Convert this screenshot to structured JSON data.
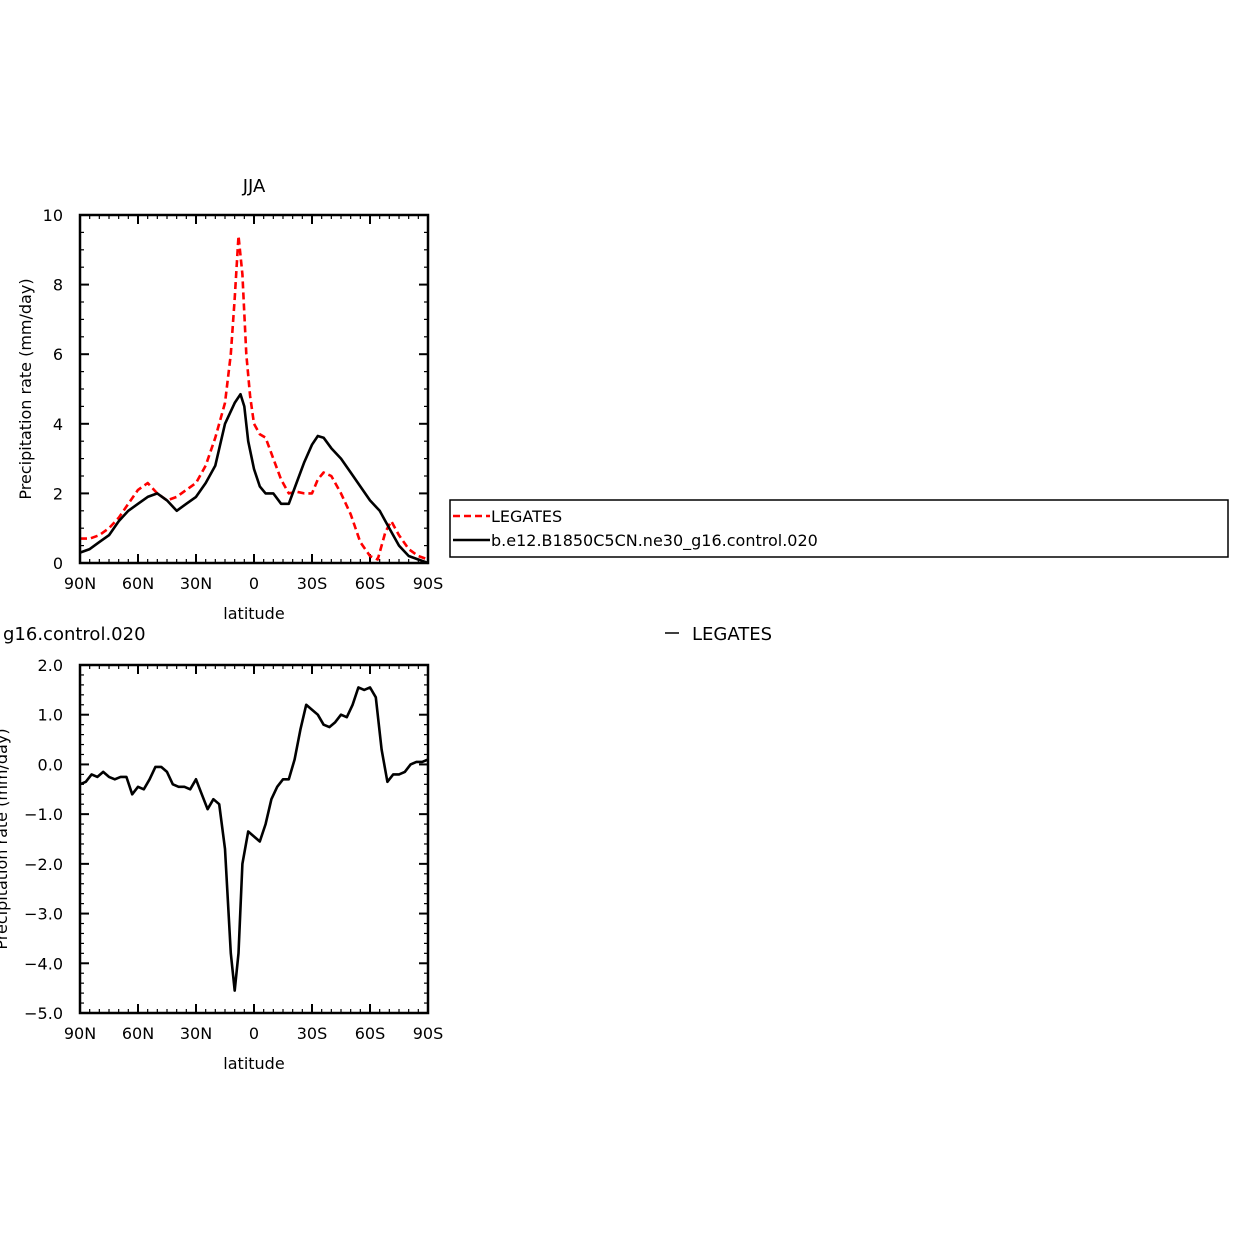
{
  "chart_data": [
    {
      "type": "line",
      "title": "JJA",
      "xlabel": "latitude",
      "ylabel": "Precipitation rate (mm/day)",
      "xlim": [
        -90,
        90
      ],
      "ylim": [
        0,
        10
      ],
      "xticks": [
        {
          "value": -90,
          "label": "90N"
        },
        {
          "value": -60,
          "label": "60N"
        },
        {
          "value": -30,
          "label": "30N"
        },
        {
          "value": 0,
          "label": "0"
        },
        {
          "value": 30,
          "label": "30S"
        },
        {
          "value": 60,
          "label": "60S"
        },
        {
          "value": 90,
          "label": "90S"
        }
      ],
      "yticks": [
        {
          "value": 0,
          "label": "0"
        },
        {
          "value": 2,
          "label": "2"
        },
        {
          "value": 4,
          "label": "4"
        },
        {
          "value": 6,
          "label": "6"
        },
        {
          "value": 8,
          "label": "8"
        },
        {
          "value": 10,
          "label": "10"
        }
      ],
      "legend": {
        "placement": "right",
        "entries": [
          {
            "name": "LEGATES",
            "color": "#ff0000",
            "style": "dashed"
          },
          {
            "name": "b.e12.B1850C5CN.ne30_g16.control.020",
            "color": "#000000",
            "style": "solid"
          }
        ]
      },
      "series": [
        {
          "name": "LEGATES",
          "color": "#ff0000",
          "style": "dashed",
          "points": [
            [
              -90,
              0.7
            ],
            [
              -85,
              0.7
            ],
            [
              -80,
              0.8
            ],
            [
              -75,
              1.0
            ],
            [
              -70,
              1.3
            ],
            [
              -65,
              1.7
            ],
            [
              -60,
              2.1
            ],
            [
              -55,
              2.3
            ],
            [
              -50,
              2.0
            ],
            [
              -45,
              1.8
            ],
            [
              -40,
              1.9
            ],
            [
              -35,
              2.1
            ],
            [
              -30,
              2.3
            ],
            [
              -25,
              2.8
            ],
            [
              -20,
              3.6
            ],
            [
              -15,
              4.6
            ],
            [
              -12,
              6.0
            ],
            [
              -10,
              7.6
            ],
            [
              -8,
              9.4
            ],
            [
              -6,
              8.3
            ],
            [
              -4,
              6.0
            ],
            [
              -2,
              4.8
            ],
            [
              0,
              4.0
            ],
            [
              3,
              3.7
            ],
            [
              6,
              3.6
            ],
            [
              10,
              3.0
            ],
            [
              14,
              2.4
            ],
            [
              18,
              2.0
            ],
            [
              22,
              2.05
            ],
            [
              26,
              2.0
            ],
            [
              30,
              2.0
            ],
            [
              33,
              2.4
            ],
            [
              36,
              2.6
            ],
            [
              40,
              2.5
            ],
            [
              45,
              2.0
            ],
            [
              50,
              1.4
            ],
            [
              55,
              0.6
            ],
            [
              60,
              0.2
            ],
            [
              64,
              0.1
            ],
            [
              68,
              0.9
            ],
            [
              71,
              1.2
            ],
            [
              75,
              0.8
            ],
            [
              80,
              0.4
            ],
            [
              85,
              0.2
            ],
            [
              90,
              0.1
            ]
          ]
        },
        {
          "name": "b.e12.B1850C5CN.ne30_g16.control.020",
          "color": "#000000",
          "style": "solid",
          "points": [
            [
              -90,
              0.3
            ],
            [
              -85,
              0.4
            ],
            [
              -80,
              0.6
            ],
            [
              -75,
              0.8
            ],
            [
              -70,
              1.2
            ],
            [
              -65,
              1.5
            ],
            [
              -60,
              1.7
            ],
            [
              -55,
              1.9
            ],
            [
              -50,
              2.0
            ],
            [
              -45,
              1.8
            ],
            [
              -40,
              1.5
            ],
            [
              -35,
              1.7
            ],
            [
              -30,
              1.9
            ],
            [
              -25,
              2.3
            ],
            [
              -20,
              2.8
            ],
            [
              -15,
              4.0
            ],
            [
              -10,
              4.6
            ],
            [
              -7,
              4.85
            ],
            [
              -5,
              4.5
            ],
            [
              -3,
              3.5
            ],
            [
              0,
              2.7
            ],
            [
              3,
              2.2
            ],
            [
              6,
              2.0
            ],
            [
              10,
              2.0
            ],
            [
              14,
              1.7
            ],
            [
              18,
              1.7
            ],
            [
              22,
              2.3
            ],
            [
              26,
              2.9
            ],
            [
              30,
              3.4
            ],
            [
              33,
              3.65
            ],
            [
              36,
              3.6
            ],
            [
              40,
              3.3
            ],
            [
              45,
              3.0
            ],
            [
              50,
              2.6
            ],
            [
              55,
              2.2
            ],
            [
              60,
              1.8
            ],
            [
              65,
              1.5
            ],
            [
              70,
              1.0
            ],
            [
              75,
              0.5
            ],
            [
              80,
              0.2
            ],
            [
              85,
              0.1
            ],
            [
              90,
              0.0
            ]
          ]
        }
      ]
    },
    {
      "type": "line",
      "title": "",
      "title_left": "g16.control.020",
      "title_right": "LEGATES",
      "xlabel": "latitude",
      "ylabel": "Precipitation rate (mm/day)",
      "xlim": [
        -90,
        90
      ],
      "ylim": [
        -5,
        2
      ],
      "xticks": [
        {
          "value": -90,
          "label": "90N"
        },
        {
          "value": -60,
          "label": "60N"
        },
        {
          "value": -30,
          "label": "30N"
        },
        {
          "value": 0,
          "label": "0"
        },
        {
          "value": 30,
          "label": "30S"
        },
        {
          "value": 60,
          "label": "60S"
        },
        {
          "value": 90,
          "label": "90S"
        }
      ],
      "yticks": [
        {
          "value": 2,
          "label": "2.0"
        },
        {
          "value": 1,
          "label": "1.0"
        },
        {
          "value": 0,
          "label": "0.0"
        },
        {
          "value": -1,
          "label": "−1.0"
        },
        {
          "value": -2,
          "label": "−2.0"
        },
        {
          "value": -3,
          "label": "−3.0"
        },
        {
          "value": -4,
          "label": "−4.0"
        },
        {
          "value": -5,
          "label": "−5.0"
        }
      ],
      "series": [
        {
          "color": "#000000",
          "style": "solid",
          "points": [
            [
              -90,
              -0.4
            ],
            [
              -87,
              -0.35
            ],
            [
              -84,
              -0.2
            ],
            [
              -81,
              -0.25
            ],
            [
              -78,
              -0.15
            ],
            [
              -75,
              -0.25
            ],
            [
              -72,
              -0.3
            ],
            [
              -69,
              -0.25
            ],
            [
              -66,
              -0.25
            ],
            [
              -63,
              -0.6
            ],
            [
              -60,
              -0.45
            ],
            [
              -57,
              -0.5
            ],
            [
              -54,
              -0.3
            ],
            [
              -51,
              -0.05
            ],
            [
              -48,
              -0.05
            ],
            [
              -45,
              -0.15
            ],
            [
              -42,
              -0.4
            ],
            [
              -39,
              -0.45
            ],
            [
              -36,
              -0.45
            ],
            [
              -33,
              -0.5
            ],
            [
              -30,
              -0.3
            ],
            [
              -27,
              -0.6
            ],
            [
              -24,
              -0.9
            ],
            [
              -21,
              -0.7
            ],
            [
              -18,
              -0.8
            ],
            [
              -15,
              -1.7
            ],
            [
              -12,
              -3.8
            ],
            [
              -10,
              -4.55
            ],
            [
              -8,
              -3.8
            ],
            [
              -6,
              -2.0
            ],
            [
              -3,
              -1.35
            ],
            [
              0,
              -1.45
            ],
            [
              3,
              -1.55
            ],
            [
              6,
              -1.2
            ],
            [
              9,
              -0.7
            ],
            [
              12,
              -0.45
            ],
            [
              15,
              -0.3
            ],
            [
              18,
              -0.3
            ],
            [
              21,
              0.1
            ],
            [
              24,
              0.7
            ],
            [
              27,
              1.2
            ],
            [
              30,
              1.1
            ],
            [
              33,
              1.0
            ],
            [
              36,
              0.8
            ],
            [
              39,
              0.75
            ],
            [
              42,
              0.85
            ],
            [
              45,
              1.0
            ],
            [
              48,
              0.95
            ],
            [
              51,
              1.2
            ],
            [
              54,
              1.55
            ],
            [
              57,
              1.5
            ],
            [
              60,
              1.55
            ],
            [
              63,
              1.35
            ],
            [
              66,
              0.3
            ],
            [
              69,
              -0.35
            ],
            [
              72,
              -0.2
            ],
            [
              75,
              -0.2
            ],
            [
              78,
              -0.15
            ],
            [
              81,
              0.0
            ],
            [
              84,
              0.05
            ],
            [
              87,
              0.05
            ],
            [
              90,
              0.1
            ]
          ]
        }
      ]
    }
  ]
}
